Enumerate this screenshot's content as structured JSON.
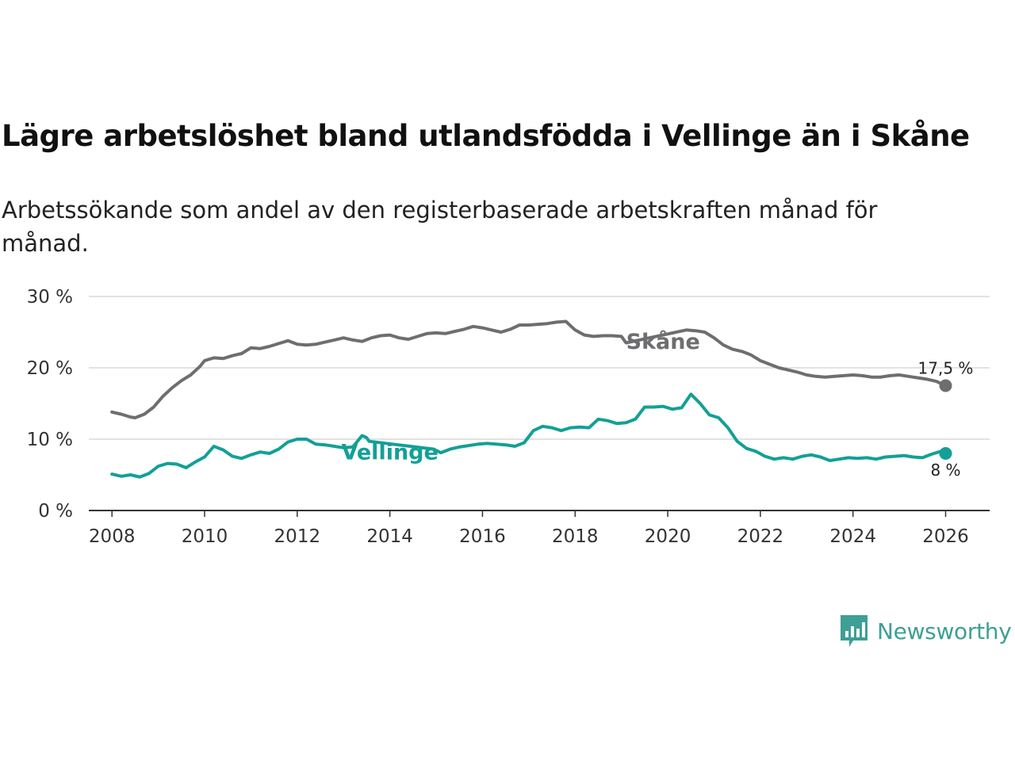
{
  "header": {
    "title": "Lägre arbetslöshet bland utlandsfödda i Vellinge än i Skåne",
    "subtitle": "Arbetssökande som andel av den registerbaserade arbetskraften månad för månad."
  },
  "brand": {
    "name": "Newsworthy",
    "color": "#3e9f94",
    "icon": "newsworthy-logo-icon"
  },
  "chart_data": {
    "type": "line",
    "title": "Lägre arbetslöshet bland utlandsfödda i Vellinge än i Skåne",
    "xlabel": "",
    "ylabel": "",
    "xlim": [
      2007.5,
      2026.95
    ],
    "ylim": [
      0,
      30
    ],
    "x_ticks": [
      2008,
      2010,
      2012,
      2014,
      2016,
      2018,
      2020,
      2022,
      2024,
      2026
    ],
    "x_tick_labels": [
      "2008",
      "2010",
      "2012",
      "2014",
      "2016",
      "2018",
      "2020",
      "2022",
      "2024",
      "2026"
    ],
    "y_ticks": [
      0,
      10,
      20,
      30
    ],
    "y_tick_labels": [
      "0 %",
      "10 %",
      "20 %",
      "30 %"
    ],
    "grid": "horizontal",
    "series": [
      {
        "name": "Skåne",
        "color": "#6e6e70",
        "end_label": "17,5 %",
        "x": [
          2008.0,
          2008.2,
          2008.4,
          2008.5,
          2008.7,
          2008.9,
          2009.1,
          2009.3,
          2009.5,
          2009.7,
          2009.9,
          2010.0,
          2010.2,
          2010.4,
          2010.6,
          2010.8,
          2011.0,
          2011.2,
          2011.4,
          2011.6,
          2011.8,
          2012.0,
          2012.2,
          2012.4,
          2012.6,
          2012.8,
          2013.0,
          2013.2,
          2013.4,
          2013.6,
          2013.8,
          2014.0,
          2014.2,
          2014.4,
          2014.6,
          2014.8,
          2015.0,
          2015.2,
          2015.4,
          2015.6,
          2015.8,
          2016.0,
          2016.2,
          2016.4,
          2016.6,
          2016.8,
          2017.0,
          2017.2,
          2017.4,
          2017.6,
          2017.8,
          2018.0,
          2018.2,
          2018.4,
          2018.6,
          2018.8,
          2019.0,
          2019.1,
          2020.4,
          2020.6,
          2020.8,
          2021.0,
          2021.2,
          2021.4,
          2021.6,
          2021.8,
          2022.0,
          2022.2,
          2022.4,
          2022.6,
          2022.8,
          2023.0,
          2023.2,
          2023.4,
          2023.6,
          2023.8,
          2024.0,
          2024.2,
          2024.4,
          2024.6,
          2024.8,
          2025.0,
          2025.2,
          2025.4,
          2025.6,
          2025.8,
          2026.0
        ],
        "values": [
          13.8,
          13.5,
          13.1,
          13.0,
          13.5,
          14.5,
          16.0,
          17.2,
          18.2,
          19.0,
          20.2,
          21.0,
          21.4,
          21.3,
          21.7,
          22.0,
          22.8,
          22.7,
          23.0,
          23.4,
          23.8,
          23.3,
          23.2,
          23.3,
          23.6,
          23.9,
          24.2,
          23.9,
          23.7,
          24.2,
          24.5,
          24.6,
          24.2,
          24.0,
          24.4,
          24.8,
          24.9,
          24.8,
          25.1,
          25.4,
          25.8,
          25.6,
          25.3,
          25.0,
          25.4,
          26.0,
          26.0,
          26.1,
          26.2,
          26.4,
          26.5,
          25.3,
          24.6,
          24.4,
          24.5,
          24.5,
          24.4,
          23.5,
          25.3,
          25.2,
          25.0,
          24.2,
          23.2,
          22.6,
          22.3,
          21.8,
          21.0,
          20.5,
          20.0,
          19.7,
          19.4,
          19.0,
          18.8,
          18.7,
          18.8,
          18.9,
          19.0,
          18.9,
          18.7,
          18.7,
          18.9,
          19.0,
          18.8,
          18.6,
          18.4,
          18.1,
          17.5
        ]
      },
      {
        "name": "Vellinge",
        "color": "#13a096",
        "end_label": "8 %",
        "x": [
          2008.0,
          2008.2,
          2008.4,
          2008.6,
          2008.8,
          2009.0,
          2009.2,
          2009.4,
          2009.6,
          2009.8,
          2010.0,
          2010.2,
          2010.4,
          2010.6,
          2010.8,
          2011.0,
          2011.2,
          2011.4,
          2011.6,
          2011.8,
          2012.0,
          2012.2,
          2012.4,
          2012.6,
          2012.8,
          2013.0,
          2013.2,
          2013.4,
          2013.5,
          2013.55,
          2014.95,
          2015.1,
          2015.3,
          2015.5,
          2015.7,
          2015.9,
          2016.1,
          2016.3,
          2016.5,
          2016.7,
          2016.9,
          2017.1,
          2017.3,
          2017.5,
          2017.7,
          2017.9,
          2018.1,
          2018.3,
          2018.5,
          2018.7,
          2018.9,
          2019.1,
          2019.3,
          2019.5,
          2019.7,
          2019.9,
          2020.1,
          2020.3,
          2020.5,
          2020.7,
          2020.9,
          2021.1,
          2021.3,
          2021.5,
          2021.7,
          2021.9,
          2022.1,
          2022.3,
          2022.5,
          2022.7,
          2022.9,
          2023.1,
          2023.3,
          2023.5,
          2023.7,
          2023.9,
          2024.1,
          2024.3,
          2024.5,
          2024.7,
          2024.9,
          2025.1,
          2025.3,
          2025.5,
          2025.7,
          2025.9,
          2026.0
        ],
        "values": [
          5.1,
          4.8,
          5.0,
          4.7,
          5.2,
          6.2,
          6.6,
          6.5,
          6.0,
          6.8,
          7.5,
          9.0,
          8.5,
          7.6,
          7.3,
          7.8,
          8.2,
          8.0,
          8.6,
          9.6,
          10.0,
          10.0,
          9.3,
          9.2,
          9.0,
          8.8,
          8.9,
          10.5,
          10.2,
          9.7,
          8.6,
          8.1,
          8.6,
          8.9,
          9.1,
          9.3,
          9.4,
          9.3,
          9.2,
          9.0,
          9.5,
          11.2,
          11.8,
          11.6,
          11.2,
          11.6,
          11.7,
          11.6,
          12.8,
          12.6,
          12.2,
          12.3,
          12.8,
          14.5,
          14.5,
          14.6,
          14.2,
          14.4,
          16.3,
          15.0,
          13.4,
          13.0,
          11.6,
          9.7,
          8.7,
          8.3,
          7.6,
          7.2,
          7.4,
          7.2,
          7.6,
          7.8,
          7.5,
          7.0,
          7.2,
          7.4,
          7.3,
          7.4,
          7.2,
          7.5,
          7.6,
          7.7,
          7.5,
          7.4,
          7.9,
          8.3,
          8.0
        ]
      }
    ],
    "annotations": [
      {
        "series": "Skåne",
        "text": "Skåne",
        "x": 2019.9,
        "y": 23.8
      },
      {
        "series": "Vellinge",
        "text": "Vellinge",
        "x": 2014.0,
        "y": 8.3
      }
    ]
  }
}
